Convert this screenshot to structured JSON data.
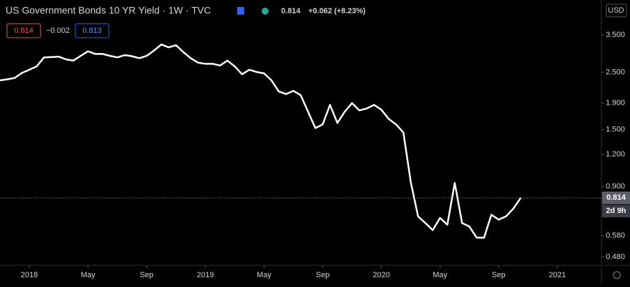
{
  "header": {
    "symbol": "US Government Bonds 10 YR Yield · 1W · TVC",
    "price": "0.814",
    "change": "+0.062 (+8.23%)",
    "bid": "0.814",
    "spread": "−0.002",
    "ask": "0.813",
    "currency": "USD",
    "countdown": "2d 9h"
  },
  "chart_data": {
    "type": "line",
    "log_scale": true,
    "grid": false,
    "x": [
      "2017-11",
      "2017-11",
      "2017-12",
      "2017-12",
      "2018-01",
      "2018-01",
      "2018-02",
      "2018-02",
      "2018-03",
      "2018-03",
      "2018-04",
      "2018-04",
      "2018-05",
      "2018-05",
      "2018-06",
      "2018-06",
      "2018-07",
      "2018-07",
      "2018-08",
      "2018-08",
      "2018-09",
      "2018-09",
      "2018-10",
      "2018-10",
      "2018-11",
      "2018-11",
      "2018-12",
      "2018-12",
      "2019-01",
      "2019-01",
      "2019-02",
      "2019-02",
      "2019-03",
      "2019-03",
      "2019-04",
      "2019-04",
      "2019-05",
      "2019-05",
      "2019-06",
      "2019-06",
      "2019-07",
      "2019-07",
      "2019-08",
      "2019-08",
      "2019-09",
      "2019-09",
      "2019-10",
      "2019-10",
      "2019-11",
      "2019-11",
      "2019-12",
      "2019-12",
      "2020-01",
      "2020-01",
      "2020-02",
      "2020-02",
      "2020-03",
      "2020-03",
      "2020-04",
      "2020-04",
      "2020-05",
      "2020-05",
      "2020-06",
      "2020-06",
      "2020-07",
      "2020-07",
      "2020-08",
      "2020-08",
      "2020-09",
      "2020-09",
      "2020-10",
      "2020-10"
    ],
    "series": [
      {
        "name": "US10Y",
        "color": "#ffffff",
        "values": [
          2.33,
          2.35,
          2.38,
          2.49,
          2.56,
          2.64,
          2.86,
          2.87,
          2.88,
          2.81,
          2.78,
          2.9,
          3.02,
          2.95,
          2.95,
          2.9,
          2.86,
          2.92,
          2.89,
          2.84,
          2.9,
          3.04,
          3.21,
          3.13,
          3.19,
          3.0,
          2.84,
          2.73,
          2.7,
          2.7,
          2.66,
          2.78,
          2.64,
          2.46,
          2.56,
          2.51,
          2.48,
          2.33,
          2.11,
          2.06,
          2.12,
          2.04,
          1.76,
          1.52,
          1.57,
          1.87,
          1.59,
          1.76,
          1.9,
          1.78,
          1.81,
          1.87,
          1.79,
          1.65,
          1.57,
          1.46,
          0.94,
          0.69,
          0.65,
          0.61,
          0.68,
          0.64,
          0.93,
          0.65,
          0.63,
          0.57,
          0.57,
          0.7,
          0.67,
          0.69,
          0.74,
          0.814
        ]
      }
    ],
    "xlim": [
      "2017-11",
      "2021-04"
    ],
    "xticks": [
      {
        "value": "2018-01",
        "label": "2018"
      },
      {
        "value": "2018-05",
        "label": "May"
      },
      {
        "value": "2018-09",
        "label": "Sep"
      },
      {
        "value": "2019-01",
        "label": "2019"
      },
      {
        "value": "2019-05",
        "label": "May"
      },
      {
        "value": "2019-09",
        "label": "Sep"
      },
      {
        "value": "2020-01",
        "label": "2020"
      },
      {
        "value": "2020-05",
        "label": "May"
      },
      {
        "value": "2020-09",
        "label": "Sep"
      },
      {
        "value": "2021-01",
        "label": "2021"
      }
    ],
    "ylim": [
      0.445,
      4.78
    ],
    "yticks": [
      {
        "value": 3.5,
        "label": "3.500"
      },
      {
        "value": 2.5,
        "label": "2.500"
      },
      {
        "value": 1.9,
        "label": "1.900"
      },
      {
        "value": 1.5,
        "label": "1.500"
      },
      {
        "value": 1.2,
        "label": "1.200"
      },
      {
        "value": 0.9,
        "label": "0.900"
      },
      {
        "value": 0.58,
        "label": "0.580"
      },
      {
        "value": 0.48,
        "label": "0.480"
      }
    ]
  }
}
